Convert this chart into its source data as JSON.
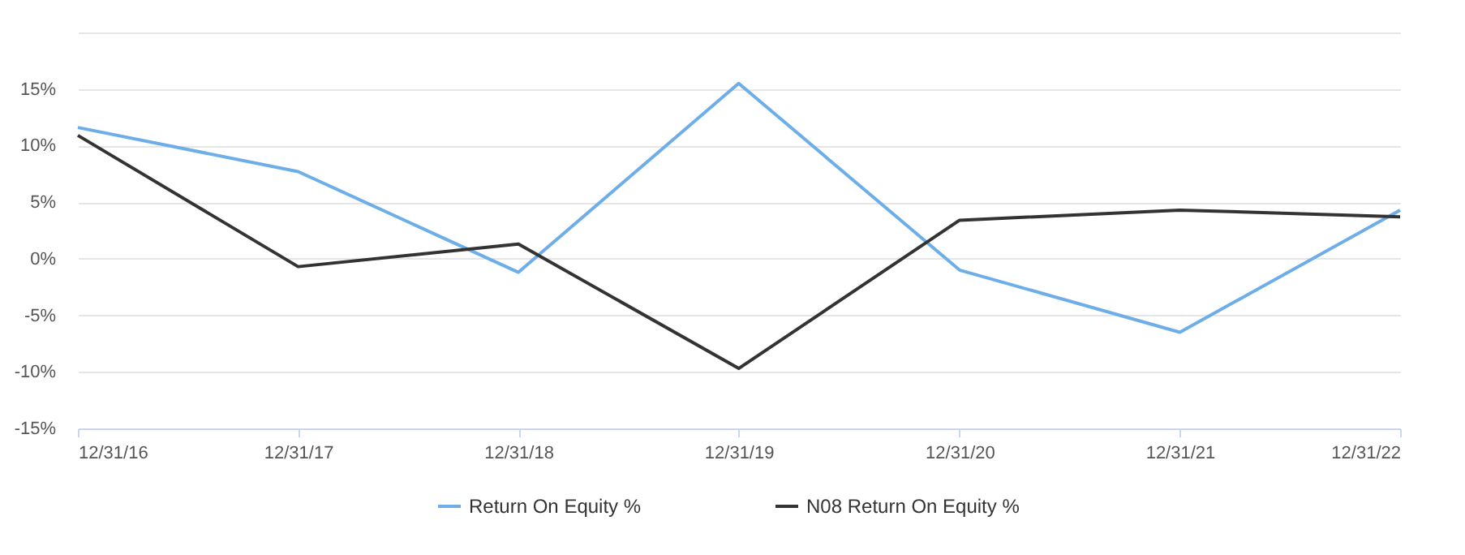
{
  "chart_data": {
    "type": "line",
    "x": [
      "2016-12-31",
      "2017-12-31",
      "2018-12-31",
      "2019-12-31",
      "2020-12-31",
      "2021-12-31",
      "2022-12-31"
    ],
    "series": [
      {
        "name": "Return On Equity %",
        "color": "#6daee8",
        "values": [
          11.6,
          7.7,
          -1.2,
          15.5,
          -1.0,
          -6.5,
          4.3
        ]
      },
      {
        "name": "N08 Return On Equity %",
        "color": "#333333",
        "values": [
          10.9,
          -0.7,
          1.3,
          -9.7,
          3.4,
          4.3,
          3.7
        ]
      }
    ],
    "xlim": [
      "2016-12-31",
      "2022-12-31"
    ],
    "xticks": [
      {
        "value": "2016-12-31",
        "label": "12/31/16"
      },
      {
        "value": "2017-12-31",
        "label": "12/31/17"
      },
      {
        "value": "2018-12-31",
        "label": "12/31/18"
      },
      {
        "value": "2019-12-31",
        "label": "12/31/19"
      },
      {
        "value": "2020-12-31",
        "label": "12/31/20"
      },
      {
        "value": "2021-12-31",
        "label": "12/31/21"
      },
      {
        "value": "2022-12-31",
        "label": "12/31/22"
      }
    ],
    "ylim": [
      -15,
      20
    ],
    "yticks": [
      {
        "value": -15,
        "label": "-15%"
      },
      {
        "value": -10,
        "label": "-10%"
      },
      {
        "value": -5,
        "label": "-5%"
      },
      {
        "value": 0,
        "label": "0%"
      },
      {
        "value": 5,
        "label": "5%"
      },
      {
        "value": 10,
        "label": "10%"
      },
      {
        "value": 15,
        "label": "15%"
      },
      {
        "value": 20,
        "label": null
      }
    ],
    "grid": "y",
    "legend": "bottom",
    "marker": "none",
    "line_style": "solid"
  }
}
